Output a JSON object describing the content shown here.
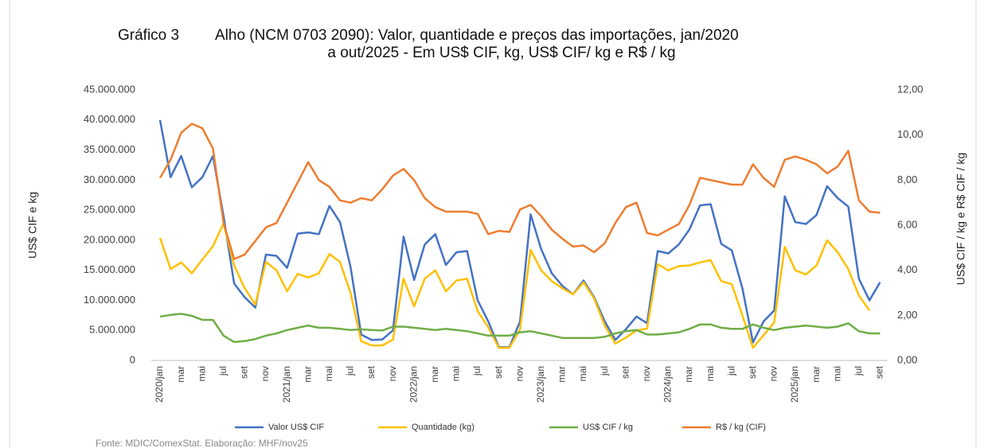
{
  "chart_data": {
    "type": "line",
    "title": [
      "Gráfico 3",
      "Alho (NCM 0703 2090): Valor, quantidade e preços das importações, jan/2020",
      "a out/2025 - Em US$ CIF, kg, US$ CIF/ kg e R$ / kg"
    ],
    "y_label": "US$ CIF e kg",
    "y2_label": "US$ CIF / kg e R$ CIF / kg",
    "source": "Fonte: MDIC/ComexStat. Elaboração: MHF/nov25",
    "categories": [
      "2020/jan",
      null,
      "mar",
      null,
      "mai",
      null,
      "jul",
      null,
      "set",
      null,
      "nov",
      null,
      "2021/jan",
      null,
      "mar",
      null,
      "mai",
      null,
      "jul",
      null,
      "set",
      null,
      "nov",
      null,
      "2022/jan",
      null,
      "mar",
      null,
      "mai",
      null,
      "jul",
      null,
      "set",
      null,
      "nov",
      null,
      "2023/jan",
      null,
      "mar",
      null,
      "mai",
      null,
      "jul",
      null,
      "set",
      null,
      "nov",
      null,
      "2024/jan",
      null,
      "mar",
      null,
      "mai",
      null,
      "jul",
      null,
      "set",
      null,
      "nov",
      null,
      "2025/jan",
      null,
      "mar",
      null,
      "mai",
      null,
      "jul",
      null,
      "set"
    ],
    "ylim": [
      0,
      45000000
    ],
    "yticks": [
      0,
      {
        "value": 5000000,
        "label": "5.000.000"
      },
      {
        "value": 10000000,
        "label": "10.000.000"
      },
      {
        "value": 15000000,
        "label": "15.000.000"
      },
      {
        "value": 20000000,
        "label": "20.000.000"
      },
      {
        "value": 25000000,
        "label": "25.000.000"
      },
      {
        "value": 30000000,
        "label": "30.000.000"
      },
      {
        "value": 35000000,
        "label": "35.000.000"
      },
      {
        "value": 40000000,
        "label": "40.000.000"
      },
      {
        "value": 45000000,
        "label": "45.000.000"
      }
    ],
    "y2lim": [
      0,
      12
    ],
    "y2ticks": [
      {
        "value": 0,
        "label": "0,00"
      },
      {
        "value": 2,
        "label": "2,00"
      },
      {
        "value": 4,
        "label": "4,00"
      },
      {
        "value": 6,
        "label": "6,00"
      },
      {
        "value": 8,
        "label": "8,00"
      },
      {
        "value": 10,
        "label": "10,00"
      },
      {
        "value": 12,
        "label": "12,00"
      }
    ],
    "grid": false,
    "series": [
      {
        "name": "Valor US$ CIF",
        "color": "#4472c4",
        "values": [
          40000000,
          30500000,
          34000000,
          28800000,
          30500000,
          34000000,
          24000000,
          12800000,
          10500000,
          8800000,
          17600000,
          17400000,
          15400000,
          21100000,
          21300000,
          21000000,
          25700000,
          23000000,
          15500000,
          4300000,
          3400000,
          3500000,
          5000000,
          20600000,
          13400000,
          19300000,
          21000000,
          15900000,
          18000000,
          18200000,
          10000000,
          6500000,
          2200000,
          2200000,
          6500000,
          24300000,
          18500000,
          14500000,
          12400000,
          11000000,
          13300000,
          10500000,
          6500000,
          3400000,
          5200000,
          7300000,
          6200000,
          18200000,
          17800000,
          19300000,
          21800000,
          25800000,
          26000000,
          19400000,
          18300000,
          12000000,
          3000000,
          6500000,
          8300000,
          27300000,
          23000000,
          22700000,
          24200000,
          29000000,
          27000000,
          25600000,
          13600000,
          10000000,
          13000000
        ]
      },
      {
        "name": "Quantidade (kg)",
        "color": "#ffc000",
        "values": [
          20400000,
          15200000,
          16300000,
          14500000,
          16800000,
          19000000,
          22800000,
          15800000,
          12000000,
          9300000,
          16400000,
          15000000,
          11500000,
          14400000,
          13800000,
          14500000,
          17700000,
          16400000,
          11200000,
          3200000,
          2500000,
          2500000,
          3500000,
          13600000,
          9000000,
          13600000,
          15000000,
          11500000,
          13300000,
          13600000,
          8200000,
          5500000,
          2100000,
          2100000,
          5200000,
          18400000,
          15000000,
          13200000,
          12000000,
          11000000,
          13000000,
          10300000,
          5800000,
          2800000,
          3800000,
          5000000,
          5300000,
          16000000,
          15000000,
          15700000,
          15800000,
          16300000,
          16700000,
          13200000,
          12700000,
          7500000,
          2100000,
          4200000,
          6300000,
          18900000,
          15000000,
          14300000,
          15800000,
          20000000,
          18000000,
          15200000,
          10800000,
          8300000,
          null
        ]
      },
      {
        "name": "US$ CIF / kg",
        "color": "#70ad47",
        "axis": "y2",
        "values": [
          1.95,
          2.02,
          2.07,
          1.98,
          1.8,
          1.8,
          1.1,
          0.82,
          0.86,
          0.95,
          1.1,
          1.2,
          1.35,
          1.45,
          1.55,
          1.45,
          1.45,
          1.4,
          1.35,
          1.38,
          1.35,
          1.33,
          1.5,
          1.5,
          1.45,
          1.4,
          1.35,
          1.4,
          1.35,
          1.3,
          1.2,
          1.1,
          1.1,
          1.1,
          1.25,
          1.3,
          1.2,
          1.1,
          1.0,
          1.0,
          1.0,
          1.0,
          1.05,
          1.2,
          1.3,
          1.35,
          1.15,
          1.15,
          1.2,
          1.25,
          1.4,
          1.6,
          1.6,
          1.45,
          1.4,
          1.4,
          1.6,
          1.45,
          1.35,
          1.45,
          1.5,
          1.55,
          1.5,
          1.45,
          1.5,
          1.65,
          1.3,
          1.2,
          1.2
        ]
      },
      {
        "name": "R$ / kg (CIF)",
        "color": "#ed7d31",
        "axis": "y2",
        "values": [
          8.1,
          8.9,
          10.1,
          10.5,
          10.3,
          9.4,
          6.1,
          4.5,
          4.7,
          5.3,
          5.9,
          6.1,
          7.0,
          7.9,
          8.8,
          8.0,
          7.7,
          7.1,
          7.0,
          7.2,
          7.1,
          7.6,
          8.2,
          8.5,
          8.0,
          7.2,
          6.8,
          6.6,
          6.6,
          6.6,
          6.5,
          5.6,
          5.75,
          5.7,
          6.7,
          6.9,
          6.4,
          5.8,
          5.4,
          5.05,
          5.1,
          4.8,
          5.2,
          6.1,
          6.8,
          7.0,
          5.65,
          5.55,
          5.8,
          6.05,
          6.9,
          8.1,
          8.0,
          7.9,
          7.8,
          7.8,
          8.7,
          8.1,
          7.7,
          8.9,
          9.05,
          8.9,
          8.7,
          8.3,
          8.6,
          9.3,
          7.1,
          6.6,
          6.55
        ]
      }
    ]
  }
}
